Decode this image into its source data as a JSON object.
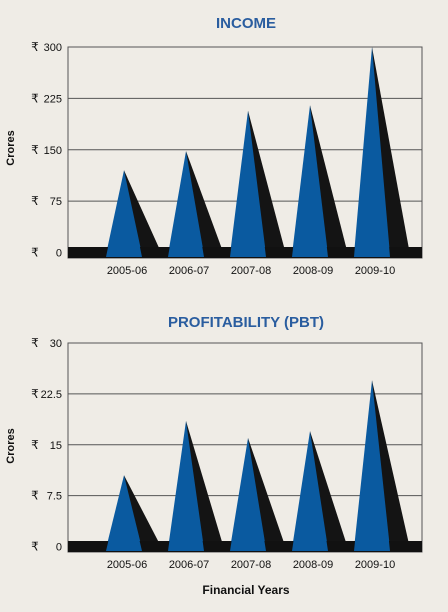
{
  "colors": {
    "background": "#efece6",
    "plot_border": "#555555",
    "grid": "#555555",
    "baseline_band": "#111111",
    "spike_front": "#0a5aa0",
    "spike_shadow": "#141414",
    "title": "#2a5d9f"
  },
  "currency_symbol": "₹",
  "footer": {
    "xlabel": "Financial Years"
  },
  "chart_data": [
    {
      "type": "bar",
      "title": "INCOME",
      "ylabel": "Crores",
      "categories": [
        "2005-06",
        "2006-07",
        "2007-08",
        "2008-09",
        "2009-10"
      ],
      "values": [
        120,
        148,
        207,
        215,
        300
      ],
      "ylim": [
        0,
        300
      ],
      "yticks": [
        "0",
        "75",
        "150",
        "225",
        "300"
      ],
      "grid": true,
      "legend": "none"
    },
    {
      "type": "bar",
      "title": "PROFITABILITY (PBT)",
      "ylabel": "Crores",
      "categories": [
        "2005-06",
        "2006-07",
        "2007-08",
        "2008-09",
        "2009-10"
      ],
      "values": [
        10.5,
        18.5,
        16,
        17,
        24.5
      ],
      "ylim": [
        0,
        30
      ],
      "yticks": [
        "0",
        "7.5",
        "15",
        "22.5",
        "30"
      ],
      "grid": true,
      "legend": "none"
    }
  ]
}
